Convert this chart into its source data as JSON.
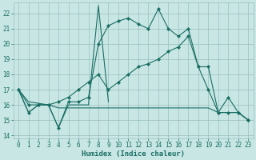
{
  "xlabel": "Humidex (Indice chaleur)",
  "xlim": [
    -0.5,
    23.5
  ],
  "ylim": [
    13.8,
    22.7
  ],
  "yticks": [
    14,
    15,
    16,
    17,
    18,
    19,
    20,
    21,
    22
  ],
  "xticks": [
    0,
    1,
    2,
    3,
    4,
    5,
    6,
    7,
    8,
    9,
    10,
    11,
    12,
    13,
    14,
    15,
    16,
    17,
    18,
    19,
    20,
    21,
    22,
    23
  ],
  "bg_color": "#c8e6e4",
  "grid_color": "#98bfbc",
  "line_color": "#1a6e64",
  "series": {
    "top_wiggly": [
      17.0,
      15.5,
      16.0,
      16.0,
      14.5,
      16.2,
      16.2,
      16.5,
      20.0,
      21.2,
      21.5,
      21.7,
      21.3,
      21.0,
      22.3,
      21.0,
      20.5,
      21.0,
      18.5,
      18.5,
      15.5,
      16.5,
      15.5,
      15.0
    ],
    "spike": [
      17.0,
      15.5,
      16.0,
      16.0,
      14.5,
      16.0,
      16.0,
      16.0,
      22.5,
      16.2,
      null,
      null,
      null,
      null,
      null,
      null,
      null,
      null,
      null,
      null,
      null,
      null,
      null,
      null
    ],
    "gradual_markers": [
      17.0,
      16.0,
      16.0,
      16.0,
      16.2,
      16.5,
      17.0,
      17.5,
      18.0,
      17.0,
      17.5,
      18.0,
      18.5,
      18.7,
      19.0,
      19.5,
      19.8,
      20.5,
      18.5,
      17.0,
      15.5,
      15.5,
      15.5,
      15.0
    ],
    "flat_bottom": [
      17.0,
      16.2,
      16.1,
      16.0,
      15.8,
      15.8,
      15.8,
      15.8,
      15.8,
      15.8,
      15.8,
      15.8,
      15.8,
      15.8,
      15.8,
      15.8,
      15.8,
      15.8,
      15.8,
      15.8,
      15.5,
      15.5,
      15.5,
      15.0
    ]
  }
}
